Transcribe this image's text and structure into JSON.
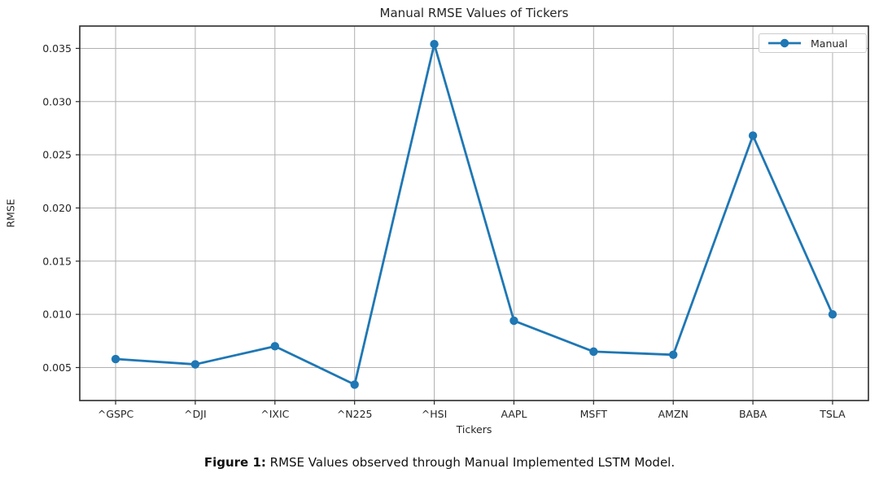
{
  "chart_data": {
    "type": "line",
    "title": "Manual RMSE Values of Tickers",
    "xlabel": "Tickers",
    "ylabel": "RMSE",
    "categories": [
      "^GSPC",
      "^DJI",
      "^IXIC",
      "^N225",
      "^HSI",
      "AAPL",
      "MSFT",
      "AMZN",
      "BABA",
      "TSLA"
    ],
    "series": [
      {
        "name": "Manual",
        "values": [
          0.0058,
          0.0053,
          0.007,
          0.0034,
          0.0354,
          0.0094,
          0.0065,
          0.0062,
          0.0268,
          0.01
        ]
      }
    ],
    "ylim": [
      0.0019,
      0.0371
    ],
    "yticks": [
      0.005,
      0.01,
      0.015,
      0.02,
      0.025,
      0.03,
      0.035
    ],
    "ytick_labels": [
      "0.005",
      "0.010",
      "0.015",
      "0.020",
      "0.025",
      "0.030",
      "0.035"
    ],
    "grid": true,
    "legend_position": "upper right",
    "line_color": "#1f77b4",
    "grid_color": "#b0b0b0",
    "axis_color": "#2b2b2b",
    "text_color": "#262626"
  },
  "legend": {
    "label": "Manual"
  },
  "caption": {
    "prefix": "Figure 1:",
    "text": " RMSE Values observed through Manual Implemented LSTM Model."
  }
}
